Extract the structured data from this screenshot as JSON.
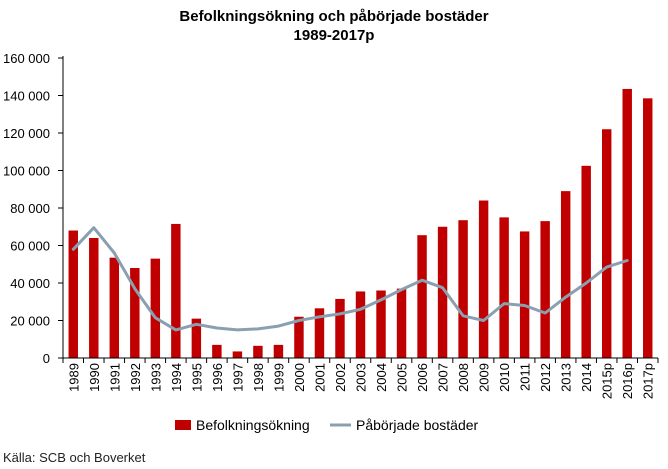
{
  "chart_data": {
    "type": "bar",
    "title_lines": [
      "Befolkningsökning och påbörjade bostäder",
      "1989-2017p"
    ],
    "categories": [
      "1989",
      "1990",
      "1991",
      "1992",
      "1993",
      "1994",
      "1995",
      "1996",
      "1997",
      "1998",
      "1999",
      "2000",
      "2001",
      "2002",
      "2003",
      "2004",
      "2005",
      "2006",
      "2007",
      "2008",
      "2009",
      "2010",
      "2011",
      "2012",
      "2013",
      "2014",
      "2015p",
      "2016p",
      "2017p"
    ],
    "series": [
      {
        "name": "Befolkningsökning",
        "type": "bar",
        "color": "#c00000",
        "values": [
          68000,
          64000,
          53500,
          48000,
          53000,
          71500,
          21000,
          7000,
          3500,
          6500,
          7000,
          22000,
          26500,
          31500,
          35500,
          36000,
          37000,
          65500,
          70000,
          73500,
          84000,
          75000,
          67500,
          73000,
          89000,
          102500,
          122000,
          143500,
          138500
        ]
      },
      {
        "name": "Påbörjade bostäder",
        "type": "line",
        "color": "#8a9fb0",
        "values": [
          58000,
          69500,
          56000,
          37000,
          21500,
          15000,
          18000,
          16000,
          15000,
          15500,
          17000,
          20000,
          22000,
          23500,
          26000,
          31000,
          36500,
          41500,
          37500,
          22500,
          20000,
          29000,
          28000,
          24000,
          32500,
          40000,
          48500,
          52000,
          null
        ]
      }
    ],
    "yticks": [
      "0",
      "20 000",
      "40 000",
      "60 000",
      "80 000",
      "100 000",
      "120 000",
      "140 000",
      "160 000"
    ],
    "ylim": [
      0,
      160000
    ],
    "xlabel": "",
    "ylabel": "",
    "grid": false,
    "legend_position": "bottom"
  },
  "source": "Källa: SCB och Boverket"
}
